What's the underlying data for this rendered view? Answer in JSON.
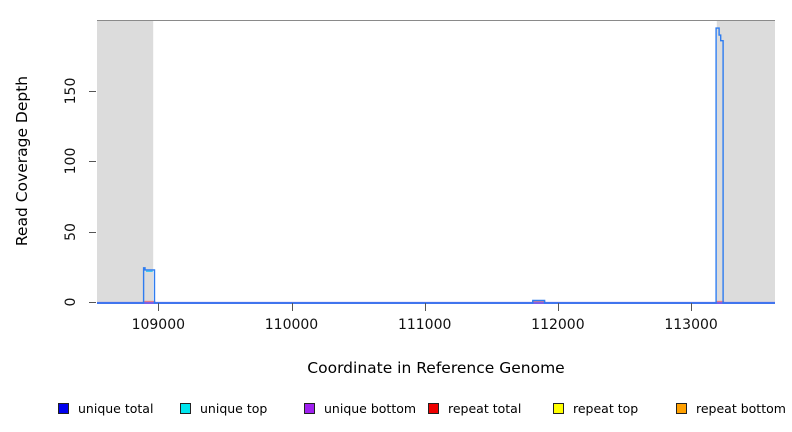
{
  "figure": {
    "background": "#ffffff",
    "shade_color": "#dcdcdc",
    "frame_color": "#8a8a8a"
  },
  "axes": {
    "x_label": "Coordinate in Reference Genome",
    "y_label": "Read Coverage Depth"
  },
  "chart_data": {
    "type": "line",
    "title": "",
    "xlabel": "Coordinate in Reference Genome",
    "ylabel": "Read Coverage Depth",
    "xlim": [
      108540,
      113630
    ],
    "ylim": [
      0,
      200
    ],
    "xticks": [
      109000,
      110000,
      111000,
      112000,
      113000
    ],
    "yticks": [
      0,
      50,
      100,
      150
    ],
    "grid": false,
    "legend_position": "bottom",
    "shaded_regions": [
      [
        108540,
        108962
      ],
      [
        113193,
        113630
      ]
    ],
    "series": [
      {
        "name": "repeat total",
        "legend_color": "#ee0000",
        "line_color": "#f4837a",
        "line_width": 1.5,
        "segments": [
          [
            [
              108884,
              1
            ],
            [
              108978,
              1
            ]
          ],
          [
            [
              111806,
              1
            ],
            [
              111906,
              1
            ]
          ],
          [
            [
              113183,
              1
            ],
            [
              113248,
              1
            ]
          ]
        ]
      },
      {
        "name": "unique bottom",
        "legend_color": "#a020f0",
        "line_color": "#7b61e8",
        "line_width": 2.2,
        "segments": [
          [
            [
              108540,
              0
            ],
            [
              113630,
              0
            ]
          ]
        ]
      },
      {
        "name": "unique top",
        "legend_color": "#00e5ee",
        "line_color": "#45c6f2",
        "line_width": 1.4,
        "segments": [
          [
            [
              108908,
              22.5
            ],
            [
              108958,
              22.5
            ]
          ]
        ]
      },
      {
        "name": "unique total",
        "legend_color": "#0000ee",
        "line_color": "#2e7cf0",
        "line_width": 1.4,
        "segments": [
          [
            [
              108540,
              0
            ],
            [
              108890,
              0
            ],
            [
              108890,
              25
            ],
            [
              108900,
              25
            ],
            [
              108900,
              23.5
            ],
            [
              108972,
              23.5
            ],
            [
              108972,
              0
            ],
            [
              111812,
              0
            ],
            [
              111812,
              1.8
            ],
            [
              111900,
              1.8
            ],
            [
              111900,
              0
            ],
            [
              113188,
              0
            ],
            [
              113188,
              195
            ],
            [
              113210,
              195
            ],
            [
              113210,
              190
            ],
            [
              113222,
              190
            ],
            [
              113222,
              186
            ],
            [
              113240,
              186
            ],
            [
              113240,
              0
            ],
            [
              113630,
              0
            ]
          ]
        ]
      },
      {
        "name": "repeat top",
        "legend_color": "#ffff00",
        "line_color": "#ffff00",
        "line_width": 1.4,
        "segments": []
      },
      {
        "name": "repeat bottom",
        "legend_color": "#ffa000",
        "line_color": "#ffa000",
        "line_width": 1.4,
        "segments": []
      }
    ]
  },
  "legend": {
    "items": [
      {
        "label": "unique total",
        "color": "#0000ee"
      },
      {
        "label": "unique top",
        "color": "#00e5ee"
      },
      {
        "label": "unique bottom",
        "color": "#a020f0"
      },
      {
        "label": "repeat total",
        "color": "#ee0000"
      },
      {
        "label": "repeat top",
        "color": "#ffff00"
      },
      {
        "label": "repeat bottom",
        "color": "#ffa000"
      }
    ]
  }
}
